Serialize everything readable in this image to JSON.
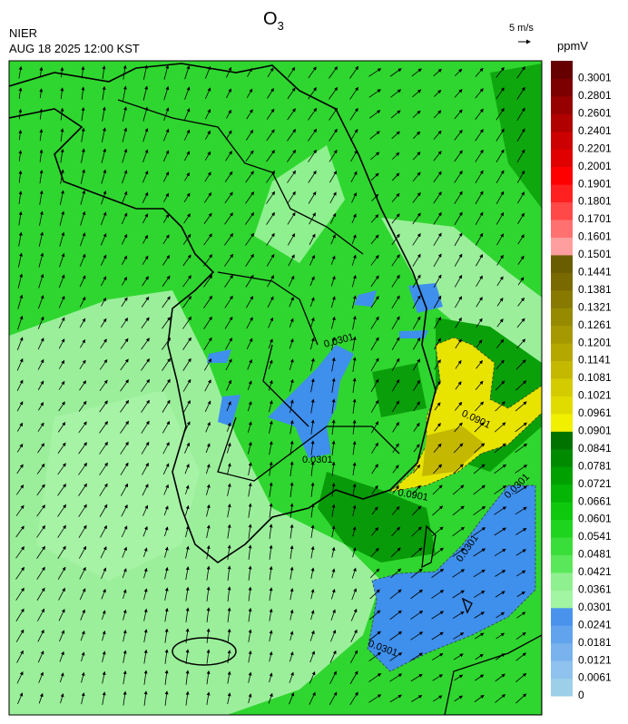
{
  "header": {
    "title": "O",
    "title_subscript": "3",
    "agency": "NIER",
    "datetime": "AUG 18 2025 12:00 KST",
    "wind_scale": "5 m/s"
  },
  "colorbar": {
    "unit": "ppmV",
    "levels": [
      0,
      0.0061,
      0.0121,
      0.0181,
      0.0241,
      0.0301,
      0.0361,
      0.0421,
      0.0481,
      0.0541,
      0.0601,
      0.0661,
      0.0721,
      0.0781,
      0.0841,
      0.0901,
      0.0961,
      0.1021,
      0.1081,
      0.1141,
      0.1201,
      0.1261,
      0.1321,
      0.1381,
      0.1441,
      0.1501,
      0.1601,
      0.1701,
      0.1801,
      0.1901,
      0.2001,
      0.2201,
      0.2401,
      0.2601,
      0.2801,
      0.3001
    ],
    "colors": [
      "#9dcfe8",
      "#8fc2ee",
      "#7ab2ee",
      "#62a3ee",
      "#4a93ec",
      "#a2f5a2",
      "#8ef08e",
      "#5ae85a",
      "#3ade3a",
      "#1fd41f",
      "#0ec80e",
      "#05b505",
      "#00a000",
      "#008a00",
      "#007200",
      "#f0f000",
      "#e0dc00",
      "#d4cc00",
      "#c4b800",
      "#b4a800",
      "#a69800",
      "#968a00",
      "#887a00",
      "#786a00",
      "#6a5c00",
      "#ff9e9e",
      "#ff7070",
      "#ff4848",
      "#ff2020",
      "#ff0000",
      "#e00000",
      "#cc0000",
      "#b00000",
      "#960000",
      "#7c0000",
      "#660000"
    ]
  },
  "map": {
    "contour_labels": [
      0.0301,
      0.0301,
      0.0901,
      0.0901,
      0.0301,
      0.0301,
      0.0301
    ]
  }
}
